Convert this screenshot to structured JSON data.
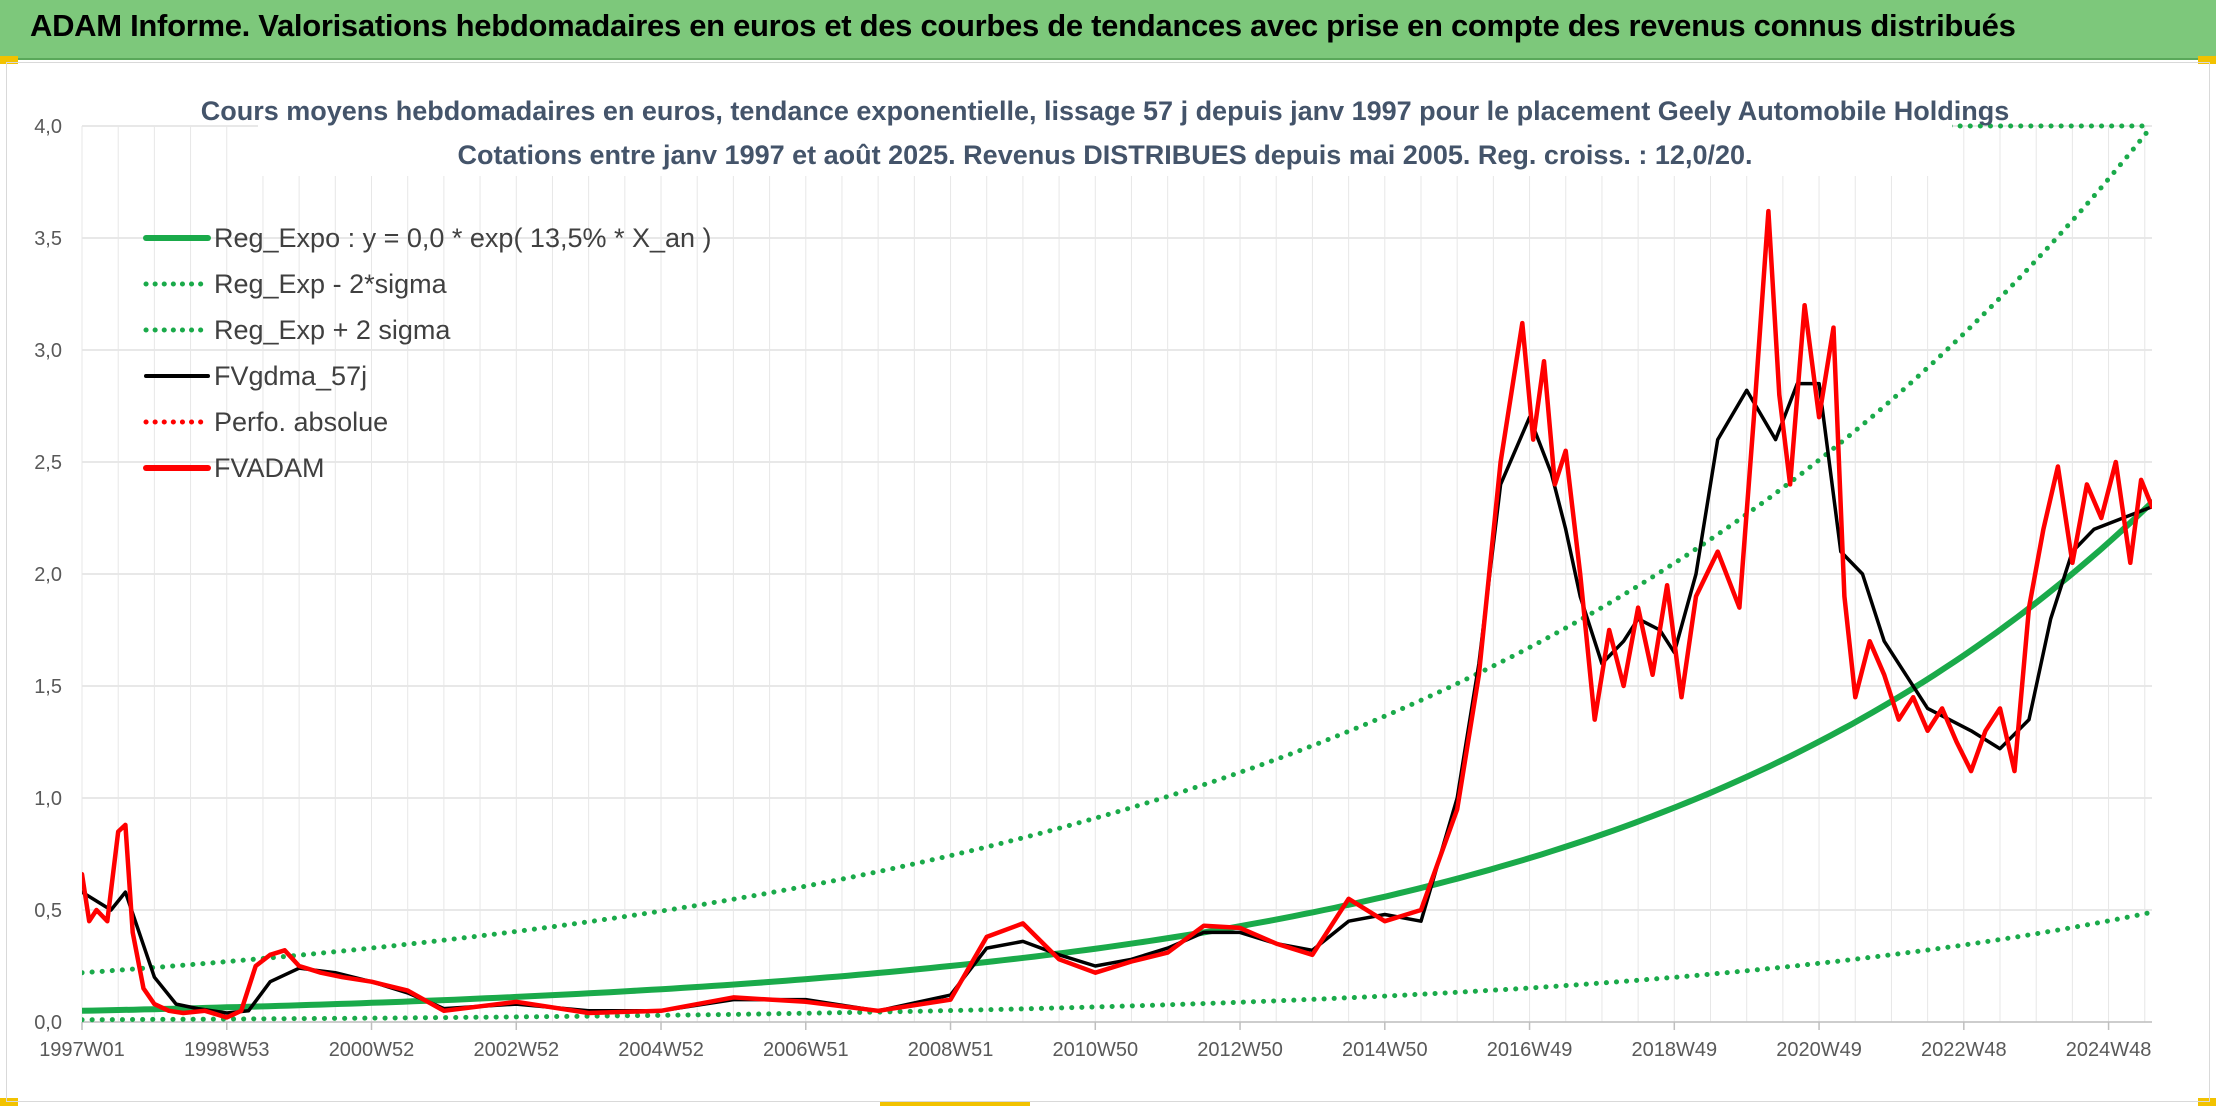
{
  "header": {
    "title": "ADAM Informe. Valorisations hebdomadaires en euros et des courbes de tendances avec prise en compte des revenus connus distribués"
  },
  "chart_data": {
    "type": "line",
    "title": "Cours moyens hebdomadaires en euros, tendance exponentielle, lissage 57 j depuis janv 1997 pour le placement Geely Automobile Holdings",
    "subtitle": "Cotations entre janv 1997 et août 2025. Revenus DISTRIBUES depuis mai 2005. Reg. croiss. : 12,0/20.",
    "xlabel": "",
    "ylabel": "",
    "ylim": [
      0,
      4.0
    ],
    "yticks": [
      "0,0",
      "0,5",
      "1,0",
      "1,5",
      "2,0",
      "2,5",
      "3,0",
      "3,5",
      "4,0"
    ],
    "xticks": [
      "1997W01",
      "1998W53",
      "2000W52",
      "2002W52",
      "2004W52",
      "2006W51",
      "2008W51",
      "2010W50",
      "2012W50",
      "2014W50",
      "2016W49",
      "2018W49",
      "2020W49",
      "2022W48",
      "2024W48"
    ],
    "grid": true,
    "legend_position": "top-left",
    "regression": {
      "type": "exponential",
      "rate": 0.135,
      "start_value": 0.05
    },
    "series": [
      {
        "name": "Reg_Expo : y = 0,0 * exp( 13,5% *  X_an )",
        "color": "#1aaa4a",
        "style": "solid",
        "x": [
          1997.0,
          2025.6
        ],
        "values": [
          0.05,
          2.32
        ]
      },
      {
        "name": "Reg_Exp - 2*sigma",
        "color": "#1aaa4a",
        "style": "dotted",
        "x": [
          1997.0,
          2025.6
        ],
        "values": [
          0.01,
          0.49
        ]
      },
      {
        "name": "Reg_Exp + 2 sigma",
        "color": "#1aaa4a",
        "style": "dotted",
        "x": [
          1997.0,
          2025.6
        ],
        "values": [
          0.22,
          4.0
        ]
      },
      {
        "name": "FVgdma_57j",
        "color": "#000000",
        "style": "solid",
        "x": [
          1997.0,
          1997.4,
          1997.6,
          1998.0,
          1998.3,
          1998.6,
          1999.0,
          1999.3,
          1999.6,
          2000.0,
          2000.5,
          2001.0,
          2001.5,
          2002.0,
          2003.0,
          2004.0,
          2005.0,
          2006.0,
          2007.0,
          2008.0,
          2009.0,
          2009.5,
          2010.0,
          2010.5,
          2011.0,
          2011.5,
          2012.0,
          2012.5,
          2013.0,
          2013.5,
          2014.0,
          2014.5,
          2015.0,
          2015.5,
          2016.0,
          2016.3,
          2016.6,
          2017.0,
          2017.3,
          2017.5,
          2017.7,
          2018.0,
          2018.3,
          2018.5,
          2018.8,
          2019.0,
          2019.3,
          2019.6,
          2020.0,
          2020.4,
          2020.7,
          2021.0,
          2021.3,
          2021.6,
          2021.9,
          2022.2,
          2022.5,
          2022.8,
          2023.1,
          2023.5,
          2023.9,
          2024.2,
          2024.5,
          2024.8,
          2025.2,
          2025.6
        ],
        "values": [
          0.58,
          0.5,
          0.58,
          0.2,
          0.08,
          0.06,
          0.04,
          0.05,
          0.18,
          0.24,
          0.22,
          0.18,
          0.13,
          0.06,
          0.08,
          0.05,
          0.05,
          0.1,
          0.1,
          0.05,
          0.12,
          0.33,
          0.36,
          0.3,
          0.25,
          0.28,
          0.33,
          0.4,
          0.4,
          0.35,
          0.32,
          0.45,
          0.48,
          0.45,
          1.0,
          1.6,
          2.4,
          2.7,
          2.45,
          2.2,
          1.9,
          1.6,
          1.7,
          1.8,
          1.75,
          1.65,
          2.0,
          2.6,
          2.82,
          2.6,
          2.85,
          2.85,
          2.1,
          2.0,
          1.7,
          1.55,
          1.4,
          1.35,
          1.3,
          1.22,
          1.35,
          1.8,
          2.1,
          2.2,
          2.25,
          2.3
        ]
      },
      {
        "name": "Perfo. absolue",
        "color": "#ff0000",
        "style": "dotted",
        "x": [],
        "values": []
      },
      {
        "name": "FVADAM",
        "color": "#ff0000",
        "style": "solid",
        "x": [
          1997.0,
          1997.1,
          1997.2,
          1997.35,
          1997.5,
          1997.6,
          1997.7,
          1997.85,
          1998.0,
          1998.2,
          1998.4,
          1998.7,
          1999.0,
          1999.2,
          1999.4,
          1999.6,
          1999.8,
          2000.0,
          2000.3,
          2000.6,
          2001.0,
          2001.5,
          2002.0,
          2003.0,
          2004.0,
          2005.0,
          2006.0,
          2007.0,
          2008.0,
          2009.0,
          2009.5,
          2010.0,
          2010.5,
          2011.0,
          2011.5,
          2012.0,
          2012.5,
          2013.0,
          2013.5,
          2014.0,
          2014.5,
          2015.0,
          2015.5,
          2016.0,
          2016.3,
          2016.6,
          2016.9,
          2017.05,
          2017.2,
          2017.35,
          2017.5,
          2017.7,
          2017.9,
          2018.1,
          2018.3,
          2018.5,
          2018.7,
          2018.9,
          2019.1,
          2019.3,
          2019.6,
          2019.9,
          2020.1,
          2020.3,
          2020.45,
          2020.6,
          2020.8,
          2021.0,
          2021.2,
          2021.35,
          2021.5,
          2021.7,
          2021.9,
          2022.1,
          2022.3,
          2022.5,
          2022.7,
          2022.9,
          2023.1,
          2023.3,
          2023.5,
          2023.7,
          2023.9,
          2024.1,
          2024.3,
          2024.5,
          2024.7,
          2024.9,
          2025.1,
          2025.3,
          2025.45,
          2025.6
        ],
        "values": [
          0.66,
          0.45,
          0.5,
          0.45,
          0.85,
          0.88,
          0.4,
          0.15,
          0.08,
          0.05,
          0.04,
          0.05,
          0.02,
          0.05,
          0.25,
          0.3,
          0.32,
          0.25,
          0.22,
          0.2,
          0.18,
          0.14,
          0.05,
          0.09,
          0.04,
          0.05,
          0.11,
          0.09,
          0.05,
          0.1,
          0.38,
          0.44,
          0.28,
          0.22,
          0.27,
          0.31,
          0.43,
          0.42,
          0.35,
          0.3,
          0.55,
          0.45,
          0.5,
          0.95,
          1.55,
          2.5,
          3.12,
          2.6,
          2.95,
          2.4,
          2.55,
          2.0,
          1.35,
          1.75,
          1.5,
          1.85,
          1.55,
          1.95,
          1.45,
          1.9,
          2.1,
          1.85,
          2.7,
          3.62,
          2.8,
          2.4,
          3.2,
          2.7,
          3.1,
          1.9,
          1.45,
          1.7,
          1.55,
          1.35,
          1.45,
          1.3,
          1.4,
          1.25,
          1.12,
          1.3,
          1.4,
          1.12,
          1.85,
          2.2,
          2.48,
          2.05,
          2.4,
          2.25,
          2.5,
          2.05,
          2.42,
          2.3
        ]
      }
    ]
  }
}
